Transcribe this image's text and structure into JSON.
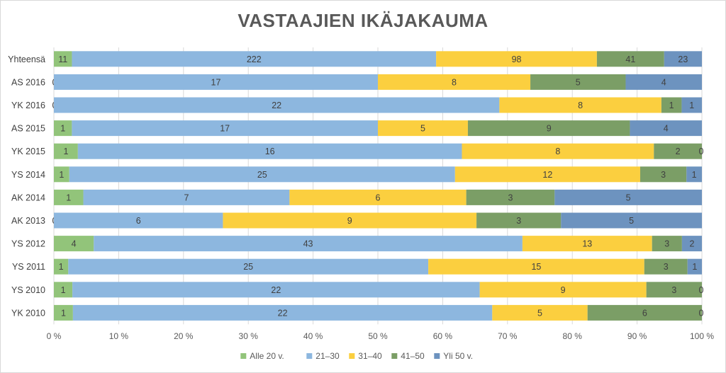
{
  "chart_data": {
    "type": "bar",
    "orientation": "horizontal",
    "stacked": "percent",
    "title": "VASTAAJIEN IKÄJAKAUMA",
    "xlabel": "",
    "ylabel": "",
    "xlim": [
      0,
      100
    ],
    "grid": true,
    "legend_position": "bottom",
    "categories": [
      "Yhteensä",
      "AS 2016",
      "YK 2016",
      "AS 2015",
      "YK 2015",
      "YS 2014",
      "AK 2014",
      "AK 2013",
      "YS 2012",
      "YS 2011",
      "YS 2010",
      "YK 2010"
    ],
    "series": [
      {
        "name": "Alle 20 v.",
        "color": "#92c47a",
        "values": [
          11,
          0,
          0,
          1,
          1,
          1,
          1,
          0,
          4,
          1,
          1,
          1
        ]
      },
      {
        "name": "21–30",
        "color": "#8db7df",
        "values": [
          222,
          17,
          22,
          17,
          16,
          25,
          7,
          6,
          43,
          25,
          22,
          22
        ]
      },
      {
        "name": "31–40",
        "color": "#fbcf3f",
        "values": [
          98,
          8,
          8,
          5,
          8,
          12,
          6,
          9,
          13,
          15,
          9,
          5
        ]
      },
      {
        "name": "41–50",
        "color": "#7b9e66",
        "values": [
          41,
          5,
          1,
          9,
          2,
          3,
          3,
          3,
          3,
          3,
          3,
          6
        ]
      },
      {
        "name": "Yli 50 v.",
        "color": "#6d93bf",
        "values": [
          23,
          4,
          1,
          4,
          0,
          1,
          5,
          5,
          2,
          1,
          0,
          0
        ]
      }
    ],
    "x_tick_labels": [
      "0 %",
      "10 %",
      "20 %",
      "30 %",
      "40 %",
      "50 %",
      "60 %",
      "70 %",
      "80 %",
      "90 %",
      "100 %"
    ]
  }
}
